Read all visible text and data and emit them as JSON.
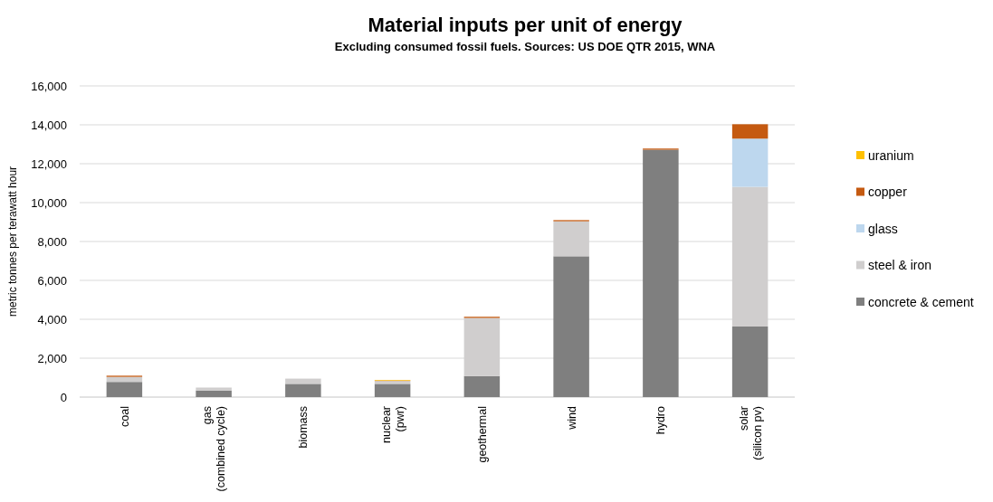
{
  "chart_data": {
    "type": "bar",
    "title": "Material inputs per unit of energy",
    "subtitle": "Excluding consumed fossil fuels. Sources: US DOE QTR 2015, WNA",
    "ylabel": "metric tonnes per terawatt hour",
    "categories": [
      "coal",
      "gas\n(combined cycle)",
      "biomass",
      "nuclear\n(pwr)",
      "geothermal",
      "wind",
      "hydro",
      "solar\n(silicon pv)"
    ],
    "stacked": true,
    "ylim": [
      0,
      16000
    ],
    "yticks": [
      {
        "value": 0,
        "label": "0"
      },
      {
        "value": 2000,
        "label": "2,000"
      },
      {
        "value": 4000,
        "label": "4,000"
      },
      {
        "value": 6000,
        "label": "6,000"
      },
      {
        "value": 8000,
        "label": "8,000"
      },
      {
        "value": 10000,
        "label": "10,000"
      },
      {
        "value": 12000,
        "label": "12,000"
      },
      {
        "value": 14000,
        "label": "14,000"
      },
      {
        "value": 16000,
        "label": "16,000"
      }
    ],
    "grid": "y",
    "legend": "right",
    "series": [
      {
        "name": "concrete & cement",
        "color": "#7f7f7f",
        "values": [
          780,
          340,
          680,
          680,
          1080,
          7240,
          12720,
          3630
        ]
      },
      {
        "name": "steel & iron",
        "color": "#d0cece",
        "values": [
          260,
          150,
          270,
          150,
          2990,
          1800,
          0,
          7180
        ]
      },
      {
        "name": "glass",
        "color": "#bdd7ee",
        "values": [
          0,
          0,
          0,
          0,
          0,
          0,
          0,
          2480
        ]
      },
      {
        "name": "copper",
        "color": "#c55a11",
        "values": [
          60,
          0,
          0,
          20,
          60,
          60,
          60,
          740
        ]
      },
      {
        "name": "uranium",
        "color": "#ffc000",
        "values": [
          0,
          0,
          0,
          30,
          0,
          0,
          0,
          0
        ]
      }
    ]
  }
}
